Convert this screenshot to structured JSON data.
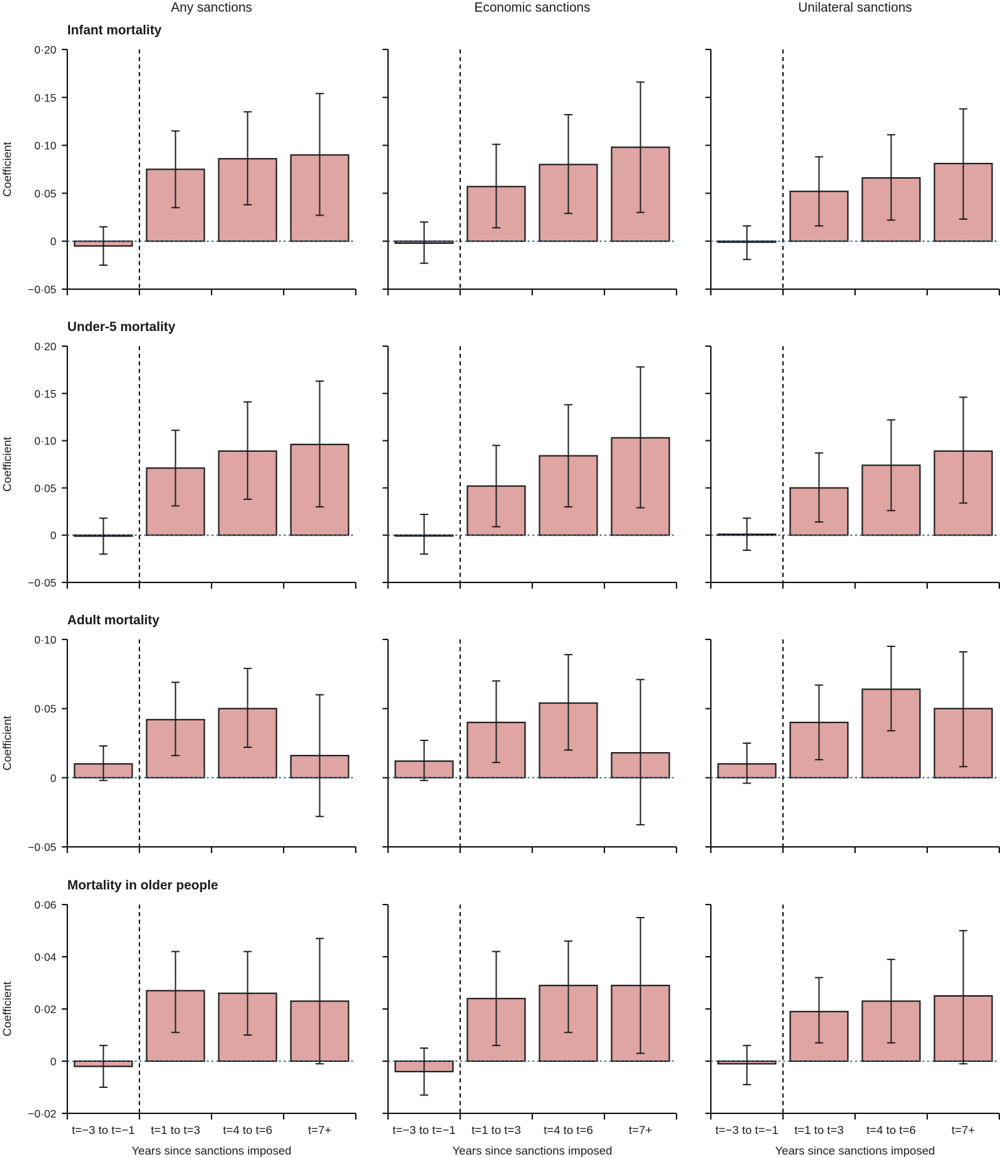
{
  "chart_data": {
    "type": "bar",
    "panel_columns": [
      "Any sanctions",
      "Economic sanctions",
      "Unilateral sanctions"
    ],
    "categories": [
      "t=−3 to t=−1",
      "t=1 to t=3",
      "t=4 to t=6",
      "t=7+"
    ],
    "xlabel": "Years since sanctions imposed",
    "ylabel": "Coefficient",
    "rows": [
      {
        "title": "Infant mortality",
        "ylim": [
          -0.05,
          0.2
        ],
        "yticks": [
          -0.05,
          0,
          0.05,
          0.1,
          0.15,
          0.2
        ],
        "ytick_labels": [
          "−0·05",
          "0",
          "0·05",
          "0·10",
          "0·15",
          "0·20"
        ],
        "series": [
          {
            "name": "Any sanctions",
            "values": [
              -0.005,
              0.075,
              0.086,
              0.09
            ],
            "ci_low": [
              -0.025,
              0.035,
              0.038,
              0.027
            ],
            "ci_high": [
              0.015,
              0.115,
              0.135,
              0.154
            ]
          },
          {
            "name": "Economic sanctions",
            "values": [
              -0.002,
              0.057,
              0.08,
              0.098
            ],
            "ci_low": [
              -0.023,
              0.014,
              0.029,
              0.03
            ],
            "ci_high": [
              0.02,
              0.101,
              0.132,
              0.166
            ]
          },
          {
            "name": "Unilateral sanctions",
            "values": [
              -0.001,
              0.052,
              0.066,
              0.081
            ],
            "ci_low": [
              -0.019,
              0.016,
              0.022,
              0.023
            ],
            "ci_high": [
              0.016,
              0.088,
              0.111,
              0.138
            ]
          }
        ]
      },
      {
        "title": "Under-5 mortality",
        "ylim": [
          -0.05,
          0.2
        ],
        "yticks": [
          -0.05,
          0,
          0.05,
          0.1,
          0.15,
          0.2
        ],
        "ytick_labels": [
          "−0·05",
          "0",
          "0·05",
          "0·10",
          "0·15",
          "0·20"
        ],
        "series": [
          {
            "name": "Any sanctions",
            "values": [
              -0.001,
              0.071,
              0.089,
              0.096
            ],
            "ci_low": [
              -0.02,
              0.031,
              0.038,
              0.03
            ],
            "ci_high": [
              0.018,
              0.111,
              0.141,
              0.163
            ]
          },
          {
            "name": "Economic sanctions",
            "values": [
              0.0,
              0.052,
              0.084,
              0.103
            ],
            "ci_low": [
              -0.02,
              0.009,
              0.03,
              0.029
            ],
            "ci_high": [
              0.022,
              0.095,
              0.138,
              0.178
            ]
          },
          {
            "name": "Unilateral sanctions",
            "values": [
              0.001,
              0.05,
              0.074,
              0.089
            ],
            "ci_low": [
              -0.016,
              0.014,
              0.026,
              0.034
            ],
            "ci_high": [
              0.018,
              0.087,
              0.122,
              0.146
            ]
          }
        ]
      },
      {
        "title": "Adult mortality",
        "ylim": [
          -0.05,
          0.1
        ],
        "yticks": [
          -0.05,
          0,
          0.05,
          0.1
        ],
        "ytick_labels": [
          "−0·05",
          "0",
          "0·05",
          "0·10"
        ],
        "series": [
          {
            "name": "Any sanctions",
            "values": [
              0.01,
              0.042,
              0.05,
              0.016
            ],
            "ci_low": [
              -0.002,
              0.016,
              0.022,
              -0.028
            ],
            "ci_high": [
              0.023,
              0.069,
              0.079,
              0.06
            ]
          },
          {
            "name": "Economic sanctions",
            "values": [
              0.012,
              0.04,
              0.054,
              0.018
            ],
            "ci_low": [
              -0.002,
              0.011,
              0.02,
              -0.034
            ],
            "ci_high": [
              0.027,
              0.07,
              0.089,
              0.071
            ]
          },
          {
            "name": "Unilateral sanctions",
            "values": [
              0.01,
              0.04,
              0.064,
              0.05
            ],
            "ci_low": [
              -0.004,
              0.013,
              0.034,
              0.008
            ],
            "ci_high": [
              0.025,
              0.067,
              0.095,
              0.091
            ]
          }
        ]
      },
      {
        "title": "Mortality in older people",
        "ylim": [
          -0.02,
          0.06
        ],
        "yticks": [
          -0.02,
          0,
          0.02,
          0.04,
          0.06
        ],
        "ytick_labels": [
          "−0·02",
          "0",
          "0·02",
          "0·04",
          "0·06"
        ],
        "series": [
          {
            "name": "Any sanctions",
            "values": [
              -0.002,
              0.027,
              0.026,
              0.023
            ],
            "ci_low": [
              -0.01,
              0.011,
              0.01,
              -0.001
            ],
            "ci_high": [
              0.006,
              0.042,
              0.042,
              0.047
            ]
          },
          {
            "name": "Economic sanctions",
            "values": [
              -0.004,
              0.024,
              0.029,
              0.029
            ],
            "ci_low": [
              -0.013,
              0.006,
              0.011,
              0.003
            ],
            "ci_high": [
              0.005,
              0.042,
              0.046,
              0.055
            ]
          },
          {
            "name": "Unilateral sanctions",
            "values": [
              -0.001,
              0.019,
              0.023,
              0.025
            ],
            "ci_low": [
              -0.009,
              0.007,
              0.007,
              -0.001
            ],
            "ci_high": [
              0.006,
              0.032,
              0.039,
              0.05
            ]
          }
        ]
      }
    ]
  }
}
